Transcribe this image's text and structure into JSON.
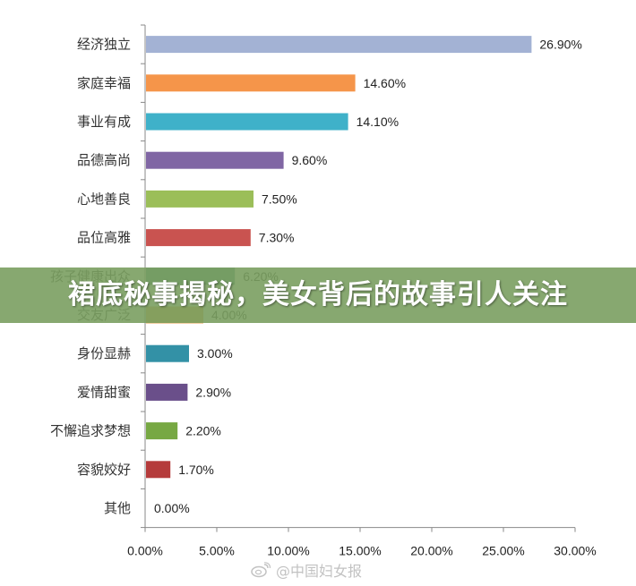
{
  "chart_data": {
    "type": "bar",
    "orientation": "horizontal",
    "categories": [
      "经济独立",
      "家庭幸福",
      "事业有成",
      "品德高尚",
      "心地善良",
      "品位高雅",
      "孩子健康出众",
      "交友广泛",
      "身份显赫",
      "爱情甜蜜",
      "不懈追求梦想",
      "容貌姣好",
      "其他"
    ],
    "values": [
      26.9,
      14.6,
      14.1,
      9.6,
      7.5,
      7.3,
      6.2,
      4.0,
      3.0,
      2.9,
      2.2,
      1.7,
      0.0
    ],
    "value_labels": [
      "26.90%",
      "14.60%",
      "14.10%",
      "9.60%",
      "7.50%",
      "7.30%",
      "6.20%",
      "4.00%",
      "3.00%",
      "2.90%",
      "2.20%",
      "1.70%",
      "0.00%"
    ],
    "colors": [
      "#A3B2D4",
      "#F5954A",
      "#3FB1C9",
      "#8066A4",
      "#9BBE59",
      "#C95350",
      "#4B8F86",
      "#E8A24E",
      "#3391A6",
      "#6A4F8A",
      "#77A843",
      "#B53B3B",
      "#4472C4"
    ],
    "xlim": [
      0,
      30
    ],
    "ticks": [
      "0.00%",
      "5.00%",
      "10.00%",
      "15.00%",
      "20.00%",
      "25.00%",
      "30.00%"
    ],
    "grid": false,
    "legend": "none"
  },
  "banner": {
    "text": "裙底秘事揭秘，美女背后的故事引人关注"
  },
  "watermark": {
    "text": "@中国妇女报",
    "icon": "weibo-icon"
  }
}
